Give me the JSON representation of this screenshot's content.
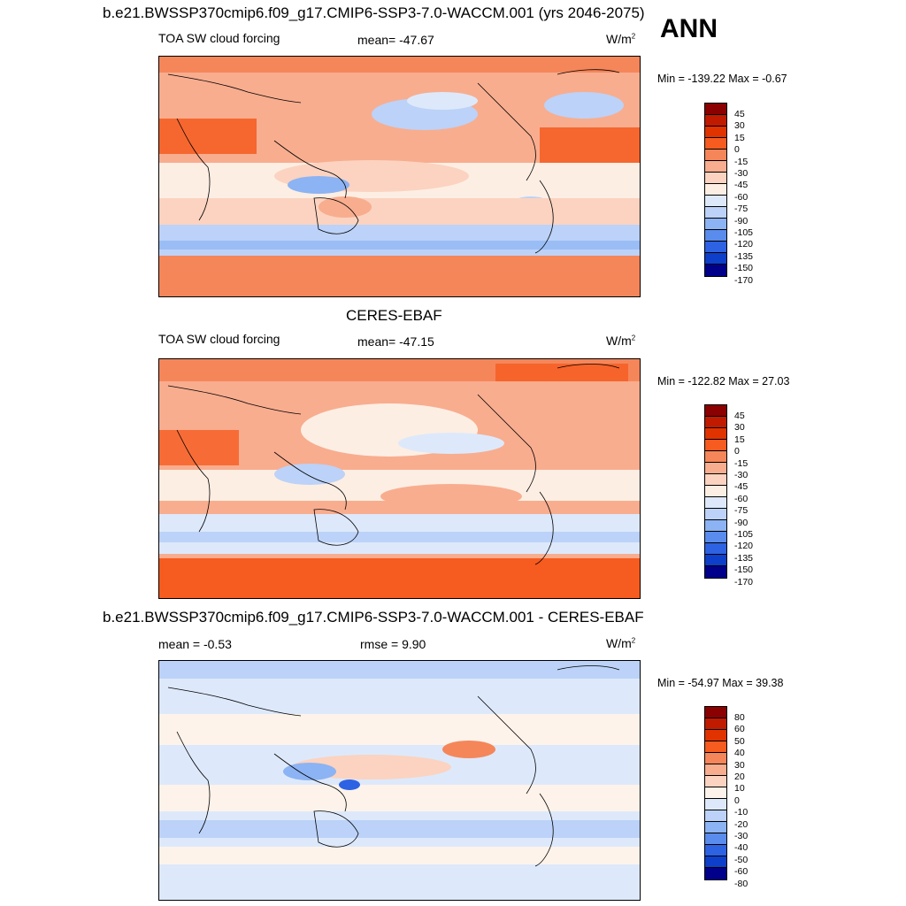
{
  "header": {
    "run_title": "b.e21.BWSSP370cmip6.f09_g17.CMIP6-SSP3-7.0-WACCM.001 (yrs 2046-2075)",
    "season": "ANN"
  },
  "panels": [
    {
      "id": "model",
      "title": "",
      "left": "TOA SW cloud forcing",
      "center": "mean= -47.67",
      "units": "W/m",
      "units_exp": "2",
      "minmax": "Min = -139.22 Max =  -0.67",
      "colorbar": [
        "45",
        "30",
        "15",
        "0",
        "-15",
        "-30",
        "-45",
        "-60",
        "-75",
        "-90",
        "-105",
        "-120",
        "-135",
        "-150",
        "-170"
      ],
      "colors": [
        "#8b0000",
        "#c01b00",
        "#e03300",
        "#f65b1f",
        "#f5865a",
        "#f8ad8f",
        "#fbd3c0",
        "#fdeee3",
        "#dde9fb",
        "#bcd2f8",
        "#8cb3f3",
        "#5a8ced",
        "#2d62e3",
        "#0e3fcb",
        "#00008b"
      ]
    },
    {
      "id": "obs",
      "title": "CERES-EBAF",
      "left": "TOA SW cloud forcing",
      "center": "mean= -47.15",
      "units": "W/m",
      "units_exp": "2",
      "minmax": "Min = -122.82 Max =  27.03",
      "colorbar": [
        "45",
        "30",
        "15",
        "0",
        "-15",
        "-30",
        "-45",
        "-60",
        "-75",
        "-90",
        "-105",
        "-120",
        "-135",
        "-150",
        "-170"
      ],
      "colors": [
        "#8b0000",
        "#c01b00",
        "#e03300",
        "#f65b1f",
        "#f5865a",
        "#f8ad8f",
        "#fbd3c0",
        "#fdeee3",
        "#dde9fb",
        "#bcd2f8",
        "#8cb3f3",
        "#5a8ced",
        "#2d62e3",
        "#0e3fcb",
        "#00008b"
      ]
    },
    {
      "id": "diff",
      "title": "b.e21.BWSSP370cmip6.f09_g17.CMIP6-SSP3-7.0-WACCM.001 - CERES-EBAF",
      "left": "mean =  -0.53",
      "center": "rmse =   9.90",
      "units": "W/m",
      "units_exp": "2",
      "minmax": "Min = -54.97 Max =  39.38",
      "colorbar": [
        "80",
        "60",
        "50",
        "40",
        "30",
        "20",
        "10",
        "0",
        "-10",
        "-20",
        "-30",
        "-40",
        "-50",
        "-60",
        "-80"
      ],
      "colors": [
        "#8b0000",
        "#c01b00",
        "#e03300",
        "#f65b1f",
        "#f5865a",
        "#f8ad8f",
        "#fbd3c0",
        "#fdf3ea",
        "#dde9fb",
        "#bcd2f8",
        "#8cb3f3",
        "#5a8ced",
        "#2d62e3",
        "#0e3fcb",
        "#00008b"
      ]
    }
  ]
}
